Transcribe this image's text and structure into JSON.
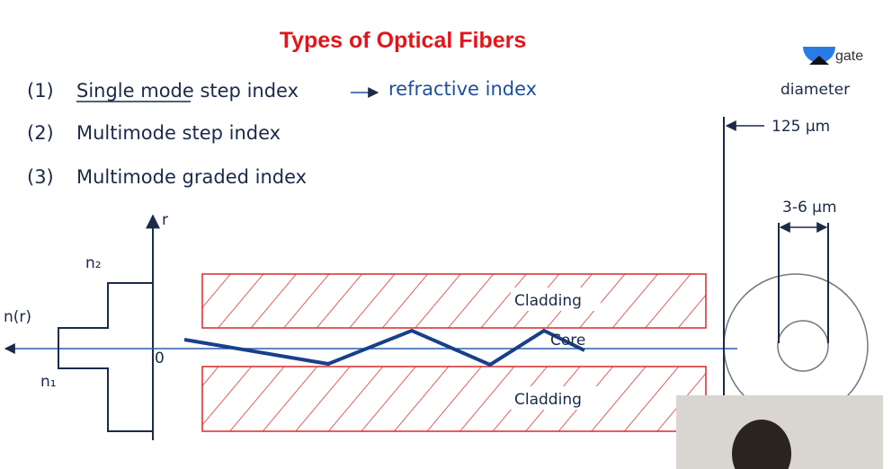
{
  "header": {
    "title": "Types of Optical Fibers",
    "logo": "gate"
  },
  "list": [
    {
      "number": "(1)",
      "text": "Single mode step index",
      "note": "refractive index"
    },
    {
      "number": "(2)",
      "text": "Multimode step index"
    },
    {
      "number": "(3)",
      "text": "Multimode graded index"
    }
  ],
  "diagram": {
    "profile": {
      "axis_label": "r",
      "function_label": "n(r)",
      "n2": "n₂",
      "n1": "n₁",
      "origin": "0"
    },
    "fiber": {
      "top": "Cladding",
      "core": "Core",
      "bottom": "Cladding"
    },
    "cross_section": {
      "outer_label": "diameter",
      "outer_value": "125 μm",
      "inner_value": "3-6 μm"
    }
  }
}
